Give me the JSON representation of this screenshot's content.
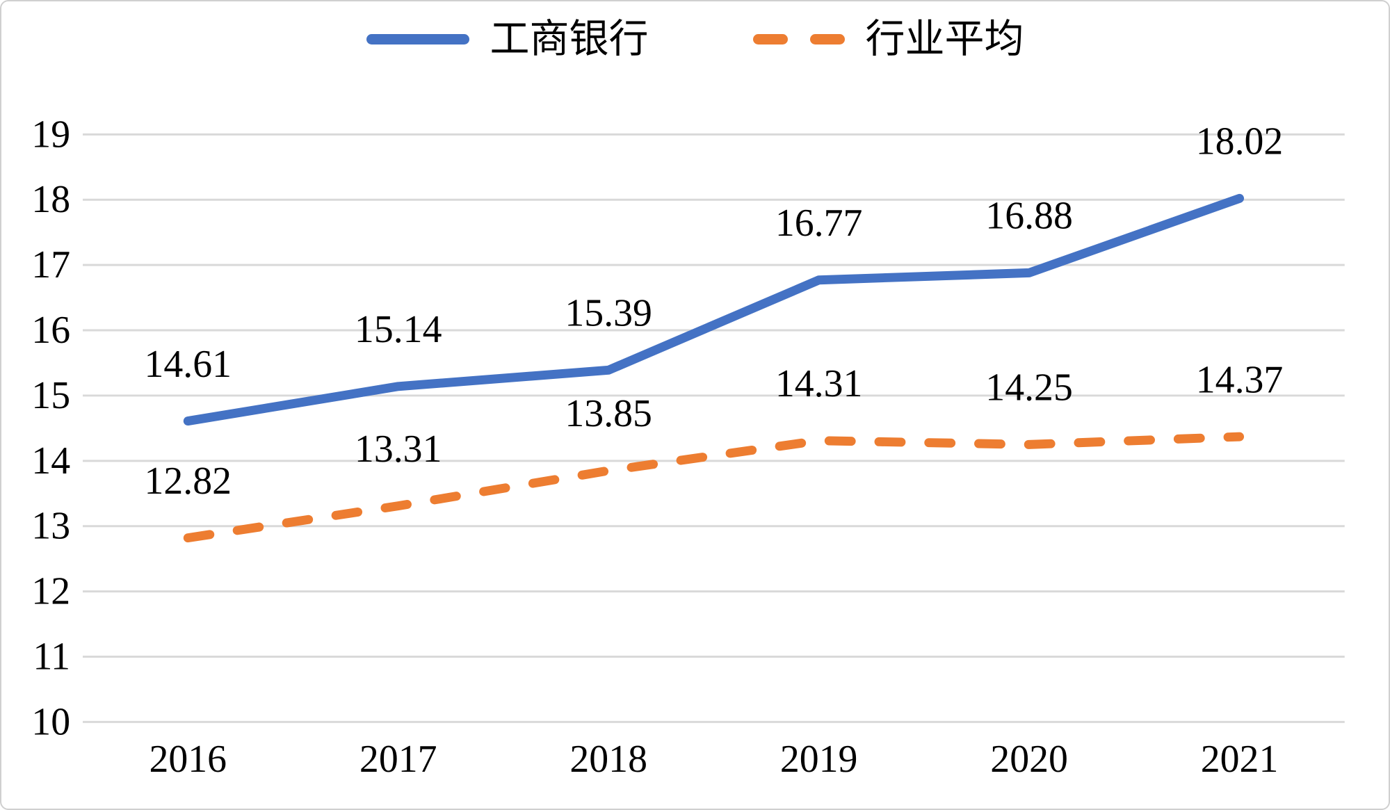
{
  "legend": {
    "items": [
      {
        "label": "工商银行",
        "color": "#4472C4",
        "style": "solid"
      },
      {
        "label": "行业平均",
        "color": "#ED7D31",
        "style": "dashed"
      }
    ]
  },
  "chart_data": {
    "type": "line",
    "title": "",
    "xlabel": "",
    "ylabel": "",
    "categories": [
      "2016",
      "2017",
      "2018",
      "2019",
      "2020",
      "2021"
    ],
    "series": [
      {
        "name": "工商银行",
        "color": "#4472C4",
        "line_style": "solid",
        "values": [
          14.61,
          15.14,
          15.39,
          16.77,
          16.88,
          18.02
        ],
        "data_labels": [
          "14.61",
          "15.14",
          "15.39",
          "16.77",
          "16.88",
          "18.02"
        ]
      },
      {
        "name": "行业平均",
        "color": "#ED7D31",
        "line_style": "dashed",
        "values": [
          12.82,
          13.31,
          13.85,
          14.31,
          14.25,
          14.37
        ],
        "data_labels": [
          "12.82",
          "13.31",
          "13.85",
          "14.31",
          "14.25",
          "14.37"
        ]
      }
    ],
    "ylim": [
      10,
      19
    ],
    "y_ticks": [
      10,
      11,
      12,
      13,
      14,
      15,
      16,
      17,
      18,
      19
    ],
    "grid": true,
    "legend_position": "top"
  },
  "colors": {
    "grid": "#D9D9D9",
    "text": "#000000",
    "background": "#FFFFFF",
    "frame_border": "#CFCFCF"
  }
}
